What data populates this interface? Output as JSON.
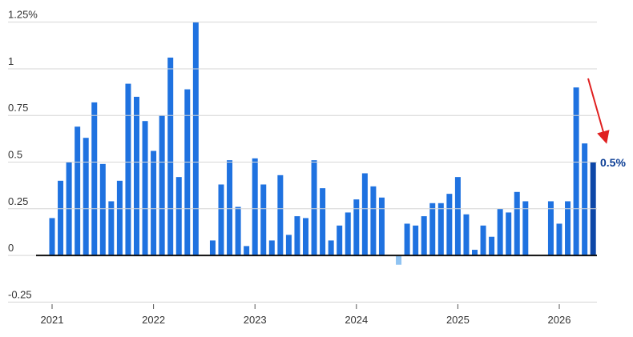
{
  "chart_data": {
    "type": "bar",
    "categories": [
      "2021",
      null,
      null,
      null,
      null,
      null,
      null,
      null,
      null,
      null,
      null,
      null,
      "2022",
      null,
      null,
      null,
      null,
      null,
      null,
      null,
      null,
      null,
      null,
      null,
      "2023",
      null,
      null,
      null,
      null,
      null,
      null,
      null,
      null,
      null,
      null,
      null,
      "2024",
      null,
      null,
      null,
      null,
      null,
      null,
      null,
      null,
      null,
      null,
      null,
      "2025",
      null,
      null,
      null,
      null,
      null,
      null,
      null,
      null,
      null,
      null,
      null,
      "2026",
      null,
      null,
      null,
      null
    ],
    "values": [
      0.2,
      0.4,
      0.5,
      0.69,
      0.63,
      0.82,
      0.49,
      0.29,
      0.4,
      0.92,
      0.85,
      0.72,
      0.56,
      0.75,
      1.06,
      0.42,
      0.89,
      1.25,
      null,
      0.08,
      0.38,
      0.51,
      0.26,
      0.05,
      0.52,
      0.38,
      0.08,
      0.43,
      0.11,
      0.21,
      0.2,
      0.51,
      0.36,
      0.08,
      0.16,
      0.23,
      0.3,
      0.44,
      0.37,
      0.31,
      null,
      -0.05,
      0.17,
      0.16,
      0.21,
      0.28,
      0.28,
      0.33,
      0.42,
      0.22,
      0.03,
      0.16,
      0.1,
      0.25,
      0.23,
      0.34,
      0.29,
      null,
      null,
      0.29,
      0.17,
      0.29,
      0.9,
      0.6,
      0.5
    ],
    "color": "#1f72e0",
    "negative_color": "#8fc3f2",
    "last_color": "#0d47a8",
    "ylim": [
      -0.3,
      1.3
    ],
    "yticks": [
      -0.25,
      0,
      0.25,
      0.5,
      0.75,
      1,
      {
        "value": 1.25,
        "label": "1.25%"
      }
    ],
    "grid": true,
    "annotation": "0.5%"
  }
}
